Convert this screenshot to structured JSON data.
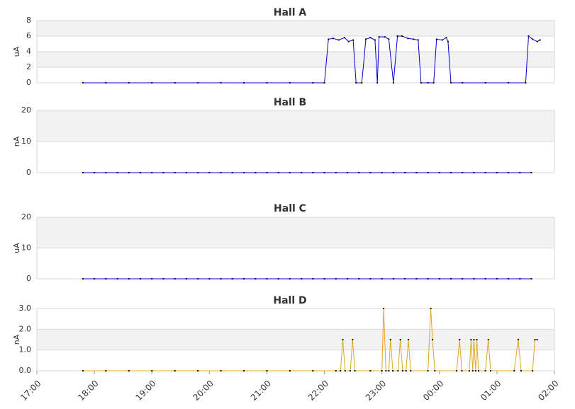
{
  "chart_data": [
    {
      "type": "line",
      "title": "Hall A",
      "ylabel": "uA",
      "color": "#0000cc",
      "grid": true,
      "xlim": [
        17,
        26
      ],
      "ylim": [
        0,
        8
      ],
      "yticks": [
        0,
        2,
        4,
        6,
        8
      ],
      "x": [
        17.8,
        18.2,
        18.6,
        19.0,
        19.4,
        19.8,
        20.2,
        20.6,
        21.0,
        21.4,
        21.8,
        22.0,
        22.07,
        22.15,
        22.25,
        22.35,
        22.42,
        22.5,
        22.55,
        22.65,
        22.72,
        22.8,
        22.88,
        22.92,
        22.95,
        23.05,
        23.12,
        23.2,
        23.27,
        23.35,
        23.45,
        23.55,
        23.63,
        23.68,
        23.8,
        23.9,
        23.95,
        24.05,
        24.12,
        24.15,
        24.2,
        24.4,
        24.8,
        25.2,
        25.5,
        25.55,
        25.62,
        25.7,
        25.75
      ],
      "values": [
        0,
        0,
        0,
        0,
        0,
        0,
        0,
        0,
        0,
        0,
        0,
        0,
        5.6,
        5.7,
        5.5,
        5.8,
        5.3,
        5.5,
        0,
        0,
        5.6,
        5.8,
        5.5,
        0,
        5.9,
        5.9,
        5.6,
        0,
        6.0,
        6.0,
        5.7,
        5.6,
        5.5,
        0,
        0,
        0,
        5.6,
        5.5,
        5.8,
        5.3,
        0,
        0,
        0,
        0,
        0,
        6.0,
        5.6,
        5.3,
        5.5
      ]
    },
    {
      "type": "line",
      "title": "Hall B",
      "ylabel": "nA",
      "color": "#0000cc",
      "grid": true,
      "xlim": [
        17,
        26
      ],
      "ylim": [
        0,
        20
      ],
      "yticks": [
        0,
        10,
        20
      ],
      "x": [
        17.8,
        18.0,
        18.2,
        18.4,
        18.6,
        18.8,
        19.0,
        19.2,
        19.4,
        19.6,
        19.8,
        20.0,
        20.2,
        20.4,
        20.6,
        20.8,
        21.0,
        21.2,
        21.4,
        21.6,
        21.8,
        22.0,
        22.2,
        22.4,
        22.6,
        22.8,
        23.0,
        23.2,
        23.4,
        23.6,
        23.8,
        24.0,
        24.2,
        24.4,
        24.6,
        24.8,
        25.0,
        25.2,
        25.4,
        25.6
      ],
      "values": [
        0,
        0,
        0,
        0,
        0,
        0,
        0,
        0,
        0,
        0,
        0,
        0,
        0,
        0,
        0,
        0,
        0,
        0,
        0,
        0,
        0,
        0,
        0,
        0,
        0,
        0,
        0,
        0,
        0,
        0,
        0,
        0,
        0,
        0,
        0,
        0,
        0,
        0,
        0,
        0
      ]
    },
    {
      "type": "line",
      "title": "Hall C",
      "ylabel": "uA",
      "color": "#0000cc",
      "grid": true,
      "xlim": [
        17,
        26
      ],
      "ylim": [
        0,
        20
      ],
      "yticks": [
        0,
        10,
        20
      ],
      "x": [
        17.8,
        18.0,
        18.2,
        18.4,
        18.6,
        18.8,
        19.0,
        19.2,
        19.4,
        19.6,
        19.8,
        20.0,
        20.2,
        20.4,
        20.6,
        20.8,
        21.0,
        21.2,
        21.4,
        21.6,
        21.8,
        22.0,
        22.2,
        22.4,
        22.6,
        22.8,
        23.0,
        23.2,
        23.4,
        23.6,
        23.8,
        24.0,
        24.2,
        24.4,
        24.6,
        24.8,
        25.0,
        25.2,
        25.4,
        25.6
      ],
      "values": [
        0,
        0,
        0,
        0,
        0,
        0,
        0,
        0,
        0,
        0,
        0,
        0,
        0,
        0,
        0,
        0,
        0,
        0,
        0,
        0,
        0,
        0,
        0,
        0,
        0,
        0,
        0,
        0,
        0,
        0,
        0,
        0,
        0,
        0,
        0,
        0,
        0,
        0,
        0,
        0
      ]
    },
    {
      "type": "line",
      "title": "Hall D",
      "ylabel": "nA",
      "color": "#e0a820",
      "grid": true,
      "xlim": [
        17,
        26
      ],
      "ylim": [
        0,
        3
      ],
      "yticks": [
        {
          "value": 0,
          "label": "0.0"
        },
        {
          "value": 1,
          "label": "1.0"
        },
        {
          "value": 2,
          "label": "2.0"
        },
        {
          "value": 3,
          "label": "3.0"
        }
      ],
      "xticks": [
        {
          "value": 17,
          "label": "17:00"
        },
        {
          "value": 18,
          "label": "18:00"
        },
        {
          "value": 19,
          "label": "19:00"
        },
        {
          "value": 20,
          "label": "20:00"
        },
        {
          "value": 21,
          "label": "21:00"
        },
        {
          "value": 22,
          "label": "22:00"
        },
        {
          "value": 23,
          "label": "23:00"
        },
        {
          "value": 24,
          "label": "00:00"
        },
        {
          "value": 25,
          "label": "01:00"
        },
        {
          "value": 26,
          "label": "02:00"
        }
      ],
      "x": [
        17.8,
        18.2,
        18.6,
        19.0,
        19.4,
        19.8,
        20.2,
        20.6,
        21.0,
        21.4,
        21.8,
        22.2,
        22.28,
        22.32,
        22.36,
        22.45,
        22.49,
        22.53,
        22.8,
        23.0,
        23.03,
        23.07,
        23.12,
        23.15,
        23.19,
        23.28,
        23.32,
        23.36,
        23.42,
        23.46,
        23.5,
        23.8,
        23.85,
        23.88,
        23.92,
        24.3,
        24.35,
        24.39,
        24.52,
        24.55,
        24.58,
        24.6,
        24.63,
        24.65,
        24.68,
        24.8,
        24.85,
        24.89,
        25.3,
        25.37,
        25.42,
        25.62,
        25.66,
        25.7
      ],
      "values": [
        0,
        0,
        0,
        0,
        0,
        0,
        0,
        0,
        0,
        0,
        0,
        0,
        0,
        1.5,
        0,
        0,
        1.5,
        0,
        0,
        0,
        3.0,
        0,
        0,
        1.5,
        0,
        0,
        1.5,
        0,
        0,
        1.5,
        0,
        0,
        3.0,
        1.5,
        0,
        0,
        1.5,
        0,
        0,
        1.5,
        0,
        1.5,
        0,
        1.5,
        0,
        0,
        1.5,
        0,
        0,
        1.5,
        0,
        0,
        1.5,
        1.5
      ]
    }
  ]
}
